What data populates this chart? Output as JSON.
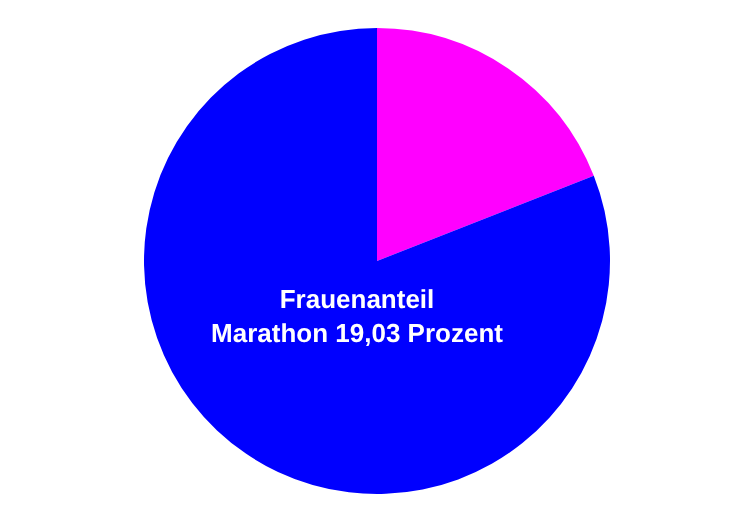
{
  "chart_data": {
    "type": "pie",
    "categories": [
      null,
      null
    ],
    "values": [
      19.03,
      80.97
    ],
    "colors": [
      "#ff00ff",
      "#0000ff"
    ],
    "legend": false,
    "annotations": [
      "Frauenanteil",
      "Marathon 19,03 Prozent"
    ]
  }
}
